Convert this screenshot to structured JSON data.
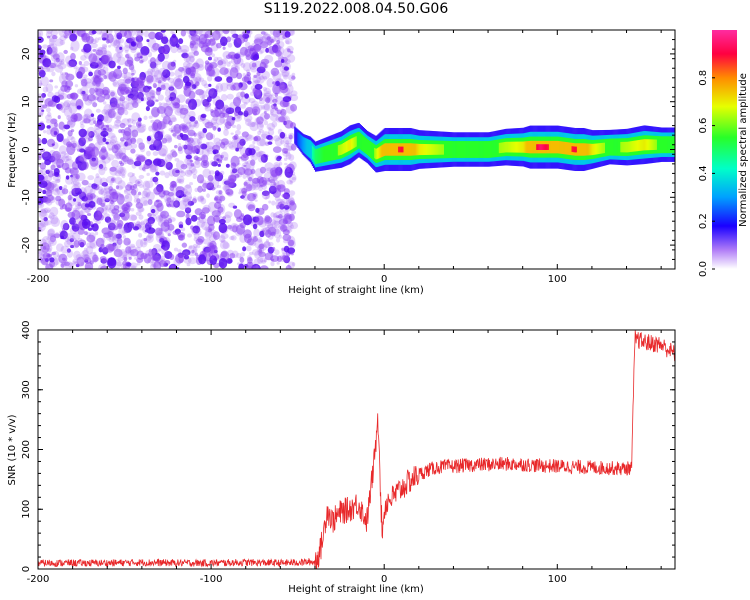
{
  "title": "S119.2022.008.04.50.G06",
  "colors": {
    "snr_line": "#e8282a",
    "spectrum_bg": "#a66af5",
    "spectrum_dark": "#5a0ff0"
  },
  "chart_data": [
    {
      "type": "heatmap",
      "xlabel": "Height of straight line (km)",
      "ylabel": "Frequency (Hz)",
      "xlim": [
        -200,
        168
      ],
      "ylim": [
        -25,
        25
      ],
      "x_ticks": [
        -200,
        -100,
        0,
        100
      ],
      "y_ticks": [
        -20,
        -10,
        0,
        10,
        20
      ],
      "noise_region_x": [
        -200,
        -52
      ],
      "signal_track": {
        "x": [
          -52,
          -47,
          -43,
          -40,
          -35,
          -30,
          -25,
          -20,
          -15,
          -10,
          -5,
          0,
          10,
          20,
          30,
          40,
          50,
          60,
          70,
          80,
          90,
          100,
          110,
          120,
          130,
          140,
          150,
          160,
          168
        ],
        "frequency": [
          3,
          1,
          0,
          -1.5,
          -1,
          -0.5,
          0,
          1,
          2,
          0.5,
          -1,
          0,
          0,
          0,
          0,
          0,
          0,
          0,
          0.5,
          0.5,
          0.5,
          0.5,
          0,
          0,
          0.5,
          0.5,
          1,
          1,
          1
        ],
        "strength": [
          0.2,
          0.3,
          0.4,
          0.5,
          0.55,
          0.6,
          0.65,
          0.7,
          0.6,
          0.55,
          0.65,
          0.8,
          0.9,
          0.7,
          0.65,
          0.6,
          0.6,
          0.6,
          0.65,
          0.7,
          0.95,
          0.8,
          0.9,
          0.7,
          0.6,
          0.65,
          0.7,
          0.6,
          0.6
        ]
      },
      "colorbar": {
        "label": "Normalized spectral amplitude",
        "range": [
          0,
          1
        ],
        "ticks": [
          "0.0",
          "0.2",
          "0.4",
          "0.6",
          "0.8"
        ]
      }
    },
    {
      "type": "line",
      "xlabel": "Height of straight line (km)",
      "ylabel": "SNR (10 * v/v)",
      "xlim": [
        -200,
        168
      ],
      "ylim": [
        0,
        400
      ],
      "x_ticks": [
        -200,
        -100,
        0,
        100
      ],
      "y_ticks": [
        0,
        100,
        200,
        300,
        400
      ],
      "series": [
        {
          "x": [
            -200,
            -180,
            -160,
            -140,
            -120,
            -100,
            -80,
            -60,
            -40,
            -37,
            -35,
            -33,
            -30,
            -25,
            -20,
            -15,
            -10,
            -7,
            -5,
            -4,
            -3,
            -2,
            -1,
            0,
            2,
            5,
            10,
            15,
            20,
            25,
            30,
            40,
            50,
            60,
            70,
            80,
            90,
            100,
            110,
            120,
            130,
            140,
            143,
            144,
            145,
            150,
            160,
            168
          ],
          "y": [
            10,
            10,
            10,
            11,
            10,
            10,
            11,
            10,
            12,
            30,
            60,
            100,
            80,
            95,
            100,
            110,
            80,
            150,
            200,
            260,
            230,
            110,
            60,
            100,
            115,
            120,
            135,
            148,
            158,
            165,
            170,
            172,
            174,
            175,
            176,
            175,
            173,
            172,
            171,
            170,
            169,
            168,
            170,
            300,
            385,
            380,
            375,
            360
          ]
        }
      ]
    }
  ]
}
